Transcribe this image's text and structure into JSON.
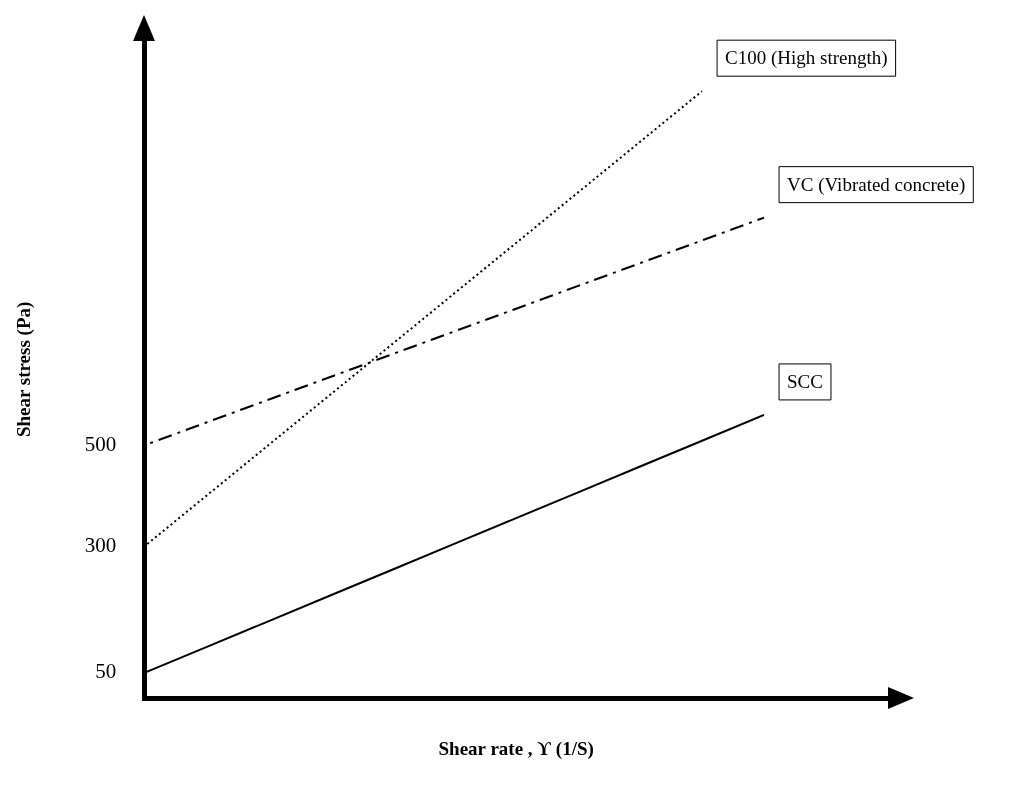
{
  "chart_data": {
    "type": "line",
    "xlabel": "Shear rate , ϒ (1/S)",
    "ylabel": "Shear stress (Pa)",
    "categories": [
      null,
      null,
      null,
      null,
      null,
      null,
      null,
      null,
      null,
      null,
      null,
      null,
      null
    ],
    "series": [
      {
        "name": "C100 (High strength)",
        "color": "#000000",
        "line_style": "dotted",
        "values": [
          300,
          400,
          500,
          600,
          700,
          800,
          900,
          1000,
          1100,
          1200,
          null,
          null,
          null
        ]
      },
      {
        "name": "VC (Vibrated concrete)",
        "color": "#000000",
        "line_style": "dashed",
        "values": [
          500,
          545,
          590,
          635,
          680,
          725,
          770,
          815,
          860,
          905,
          950,
          null,
          null
        ]
      },
      {
        "name": "SCC",
        "color": "#000000",
        "line_style": "solid",
        "values": [
          50,
          101,
          152,
          203,
          254,
          305,
          356,
          407,
          458,
          509,
          560,
          null,
          null
        ]
      }
    ],
    "ylim": [
      0,
      1300
    ],
    "yticks": [
      50,
      300,
      500
    ],
    "tick_labels": "y",
    "grid": false,
    "legend": false,
    "marker": "none"
  }
}
